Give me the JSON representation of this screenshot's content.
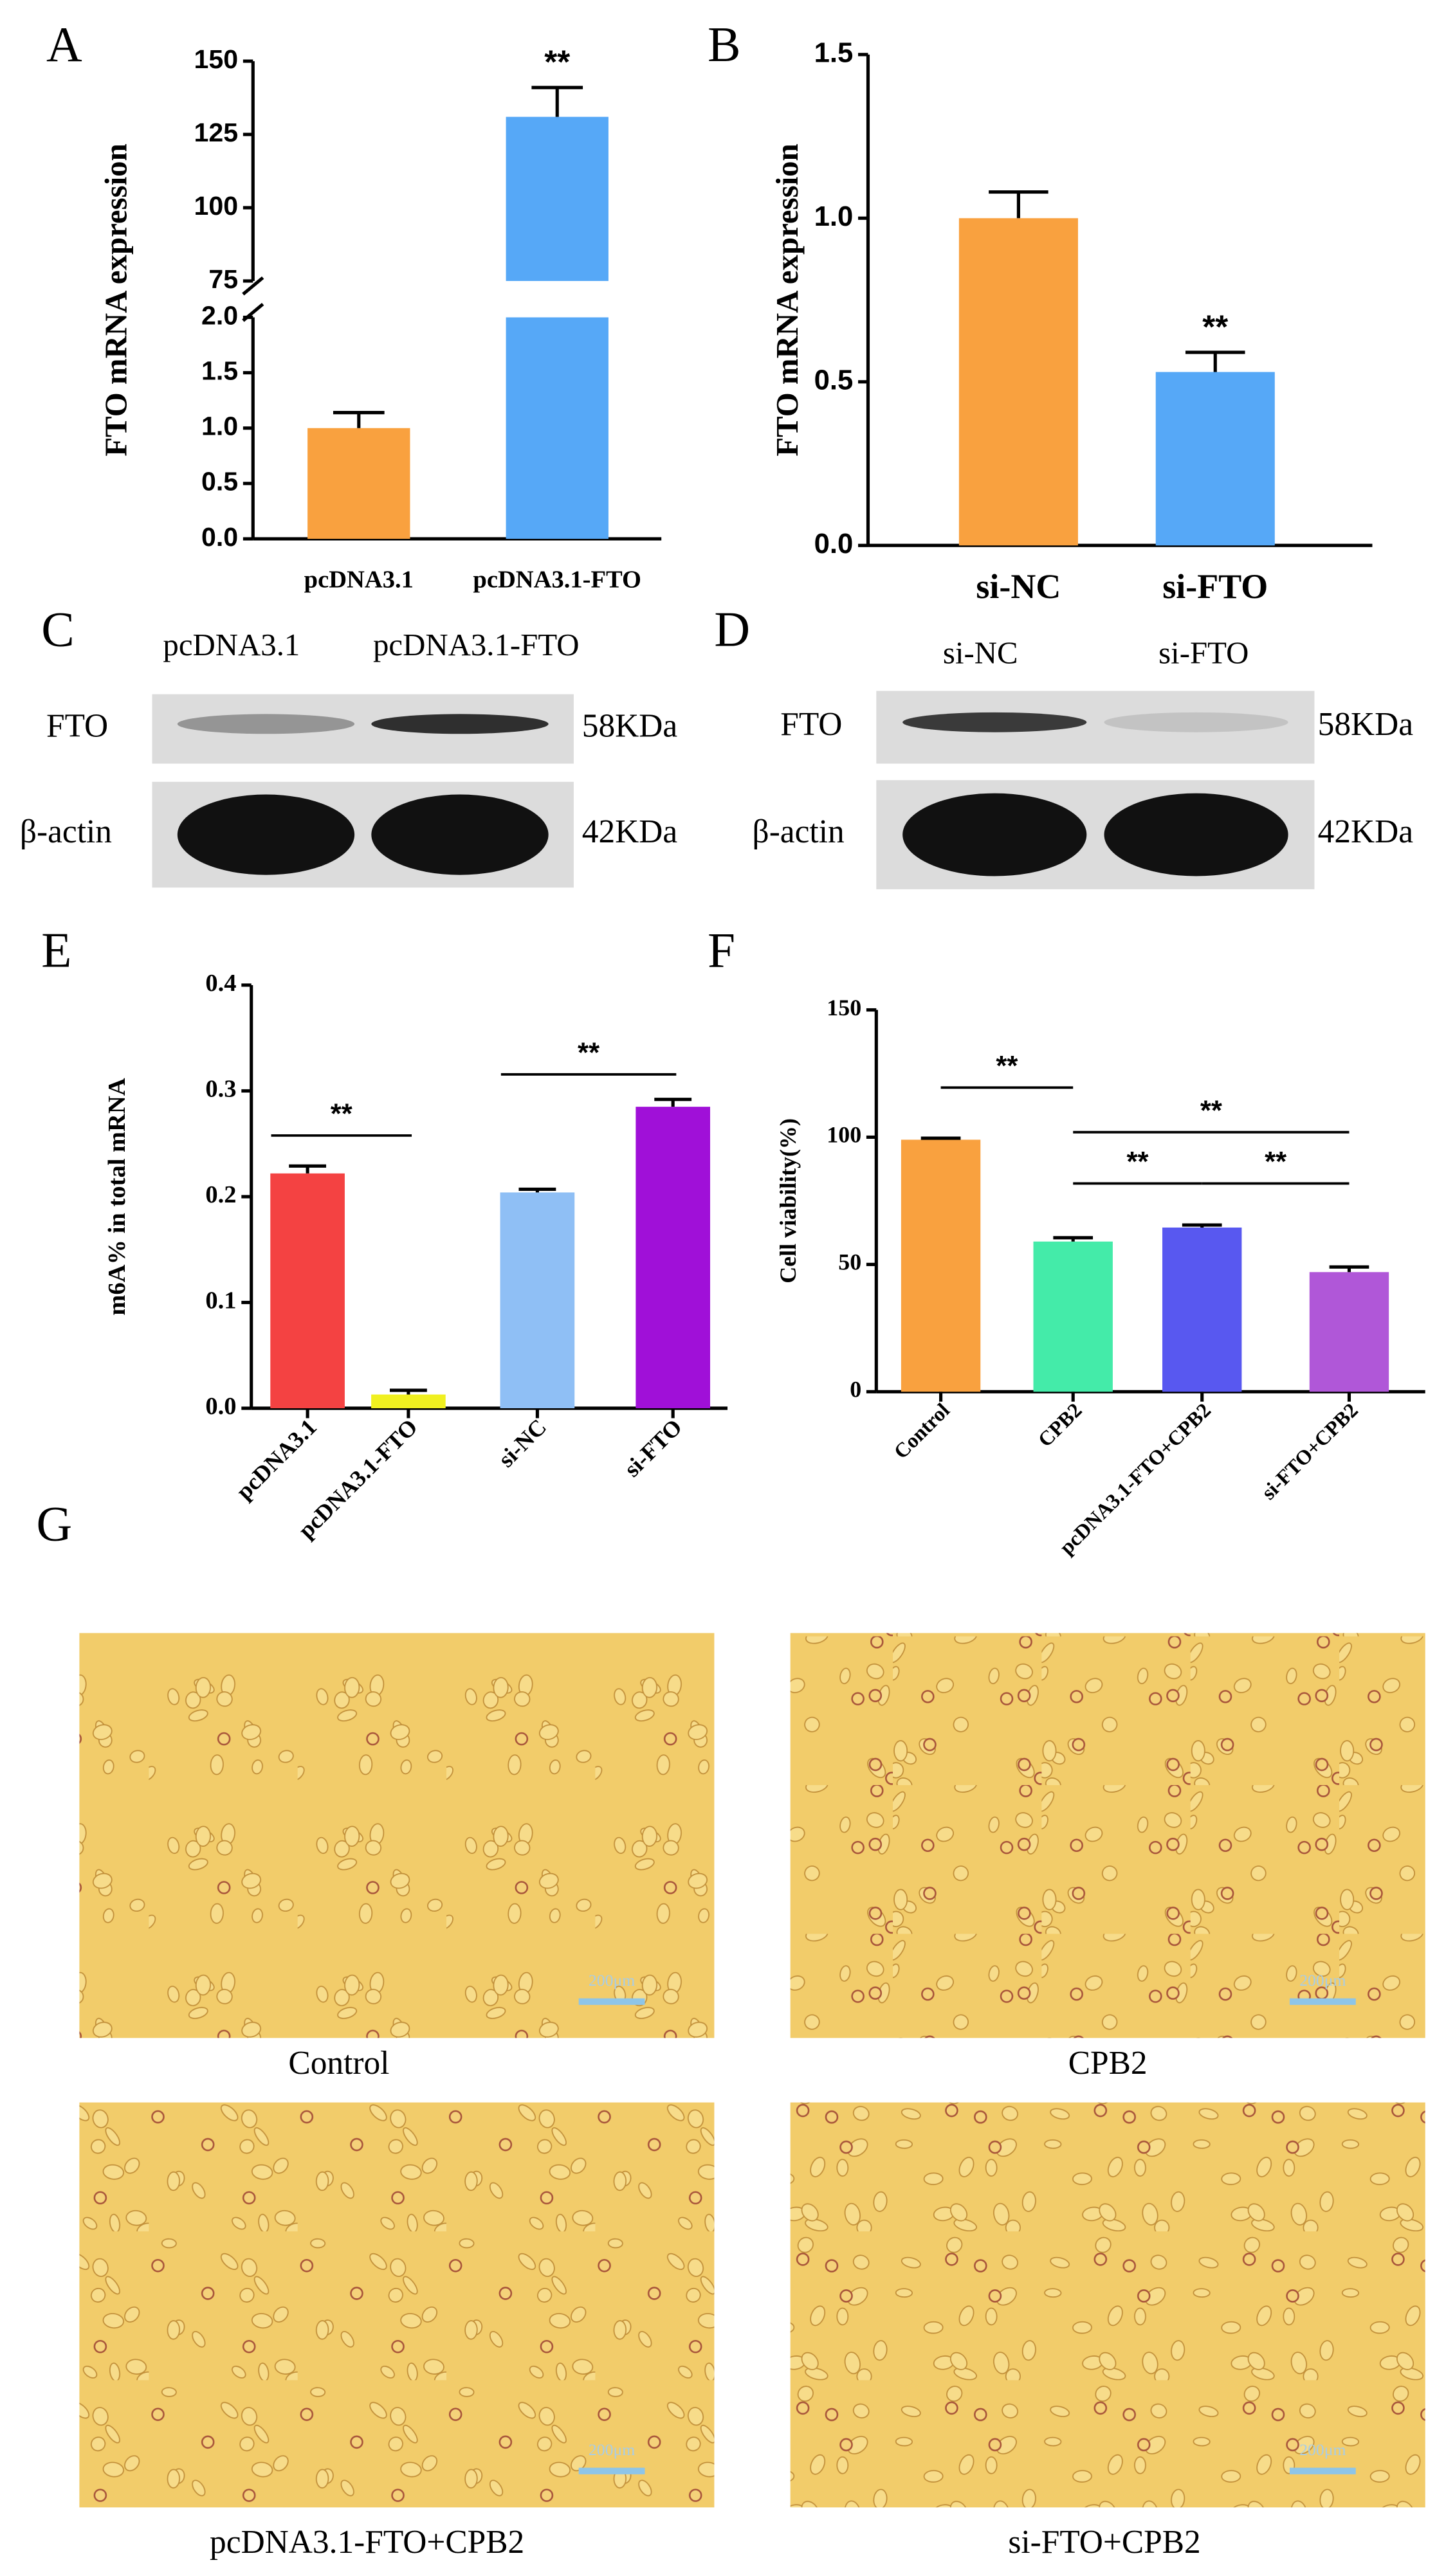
{
  "chart_data": [
    {
      "panel": "A",
      "type": "bar",
      "ylabel": "FTO mRNA expression",
      "categories": [
        "pcDNA3.1",
        "pcDNA3.1-FTO"
      ],
      "values": [
        1.0,
        131
      ],
      "errors": [
        0.14,
        10
      ],
      "colors": [
        "#f9a13f",
        "#56a8f7"
      ],
      "ylim": [
        0,
        150
      ],
      "ybreak": [
        2,
        75
      ],
      "yticks": [
        {
          "value": 0,
          "label": "0.0"
        },
        0.5,
        {
          "value": 1,
          "label": "1.0"
        },
        1.5,
        {
          "value": 2,
          "label": "2.0"
        },
        75,
        100,
        125,
        150
      ],
      "annotations": [
        {
          "text": "**",
          "category": "pcDNA3.1-FTO"
        }
      ]
    },
    {
      "panel": "B",
      "type": "bar",
      "ylabel": "FTO mRNA expression",
      "categories": [
        "si-NC",
        "si-FTO"
      ],
      "values": [
        1.0,
        0.53
      ],
      "errors": [
        0.08,
        0.06
      ],
      "colors": [
        "#f9a13f",
        "#56a8f7"
      ],
      "ylim": [
        0,
        1.5
      ],
      "yticks": [
        {
          "value": 0,
          "label": "0.0"
        },
        0.5,
        {
          "value": 1,
          "label": "1.0"
        },
        1.5
      ],
      "annotations": [
        {
          "text": "**",
          "category": "si-FTO"
        }
      ]
    },
    {
      "panel": "E",
      "type": "bar",
      "ylabel": "m6A%  in total mRNA",
      "categories": [
        "pcDNA3.1",
        "pcDNA3.1-FTO",
        "si-NC",
        "si-FTO"
      ],
      "values": [
        0.222,
        0.013,
        0.204,
        0.285
      ],
      "errors": [
        0.007,
        0.004,
        0.003,
        0.007
      ],
      "colors": [
        "#f44242",
        "#f0f020",
        "#8fbff5",
        "#a010d8"
      ],
      "ylim": [
        0,
        0.4
      ],
      "yticks": [
        {
          "value": 0,
          "label": "0.0"
        },
        0.1,
        0.2,
        0.3,
        0.4
      ],
      "annotations": [
        {
          "text": "**",
          "between": [
            "pcDNA3.1",
            "pcDNA3.1-FTO"
          ]
        },
        {
          "text": "**",
          "between": [
            "si-NC",
            "si-FTO"
          ]
        }
      ]
    },
    {
      "panel": "F",
      "type": "bar",
      "ylabel": "Cell viability(%)",
      "categories": [
        "Control",
        "CPB2",
        "pcDNA3.1-FTO+CPB2",
        "si-FTO+CPB2"
      ],
      "values": [
        99,
        59,
        64.5,
        47
      ],
      "errors": [
        0.6,
        1.5,
        1.0,
        2.0
      ],
      "colors": [
        "#f9a13f",
        "#44eba9",
        "#5858f0",
        "#b057d8"
      ],
      "ylim": [
        0,
        150
      ],
      "yticks": [
        0,
        50,
        100,
        150
      ],
      "annotations": [
        {
          "text": "**",
          "between": [
            "Control",
            "CPB2"
          ]
        },
        {
          "text": "**",
          "between": [
            "CPB2",
            "si-FTO+CPB2"
          ]
        },
        {
          "text": "**",
          "between": [
            "CPB2",
            "pcDNA3.1-FTO+CPB2"
          ]
        },
        {
          "text": "**",
          "between": [
            "pcDNA3.1-FTO+CPB2",
            "si-FTO+CPB2"
          ]
        }
      ]
    }
  ],
  "blots": [
    {
      "panel": "C",
      "lanes": [
        "pcDNA3.1",
        "pcDNA3.1-FTO"
      ],
      "rows": [
        {
          "protein": "FTO",
          "size": "58KDa"
        },
        {
          "protein": "β-actin",
          "size": "42KDa"
        }
      ]
    },
    {
      "panel": "D",
      "lanes": [
        "si-NC",
        "si-FTO"
      ],
      "rows": [
        {
          "protein": "FTO",
          "size": "58KDa"
        },
        {
          "protein": "β-actin",
          "size": "42KDa"
        }
      ]
    }
  ],
  "images": {
    "panel": "G",
    "items": [
      {
        "caption": "Control",
        "scale_bar": "200μm"
      },
      {
        "caption": "CPB2",
        "scale_bar": "200μm"
      },
      {
        "caption": "pcDNA3.1-FTO+CPB2",
        "scale_bar": "200μm"
      },
      {
        "caption": "si-FTO+CPB2",
        "scale_bar": "200μm"
      }
    ]
  }
}
